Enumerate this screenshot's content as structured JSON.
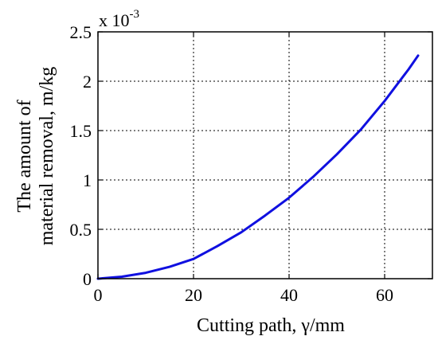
{
  "chart_data": {
    "type": "line",
    "title": "",
    "xlabel": "Cutting path, γ/mm",
    "ylabel_lines": [
      "The amount of",
      "material removal, m/kg"
    ],
    "y_multiplier": {
      "base": "x 10",
      "exponent": "-3"
    },
    "xlim": [
      0,
      70
    ],
    "ylim": [
      0,
      2.5
    ],
    "x_ticks": [
      0,
      20,
      40,
      60
    ],
    "x_tick_labels": [
      "0",
      "20",
      "40",
      "60"
    ],
    "y_ticks": [
      0,
      0.5,
      1,
      1.5,
      2,
      2.5
    ],
    "y_tick_labels": [
      "0",
      "0.5",
      "1",
      "1.5",
      "2",
      "2.5"
    ],
    "grid": true,
    "series": [
      {
        "color": "#1010e0",
        "x": [
          0,
          5,
          10,
          15,
          20,
          25,
          30,
          35,
          40,
          45,
          50,
          55,
          60,
          65,
          67
        ],
        "y": [
          0,
          0.02,
          0.06,
          0.12,
          0.2,
          0.33,
          0.47,
          0.64,
          0.82,
          1.03,
          1.26,
          1.51,
          1.8,
          2.12,
          2.26
        ]
      }
    ]
  }
}
